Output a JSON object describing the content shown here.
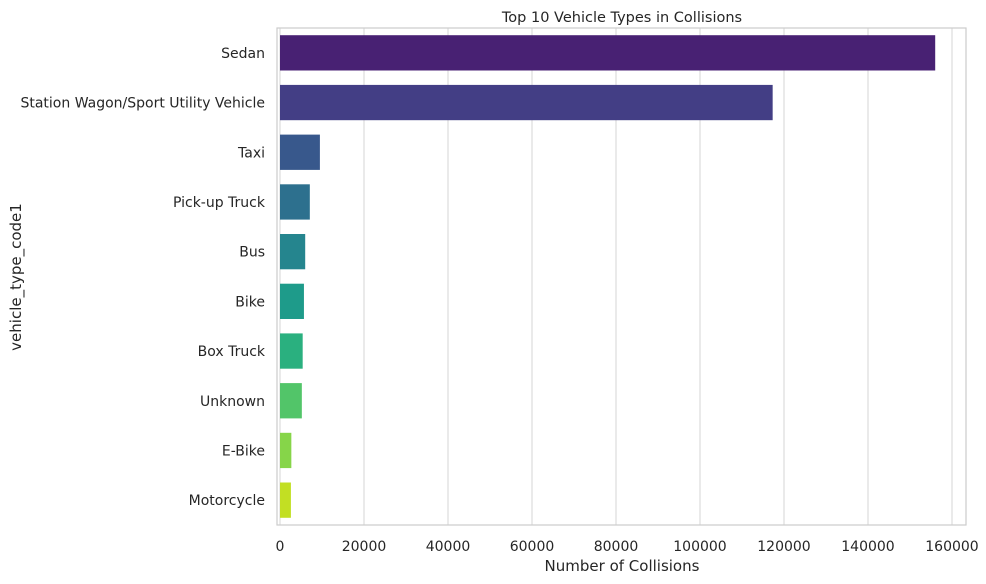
{
  "chart_data": {
    "type": "bar",
    "orientation": "horizontal",
    "title": "Top 10 Vehicle Types in Collisions",
    "xlabel": "Number of Collisions",
    "ylabel": "vehicle_type_code1",
    "categories": [
      "Sedan",
      "Station Wagon/Sport Utility Vehicle",
      "Taxi",
      "Pick-up Truck",
      "Bus",
      "Bike",
      "Box Truck",
      "Unknown",
      "E-Bike",
      "Motorcycle"
    ],
    "values": [
      156000,
      117300,
      9500,
      7100,
      6000,
      5700,
      5400,
      5200,
      2700,
      2600
    ],
    "xlim": [
      0,
      164000
    ],
    "xticks": [
      0,
      20000,
      40000,
      60000,
      80000,
      100000,
      120000,
      140000,
      160000
    ],
    "xtick_labels": [
      "0",
      "20000",
      "40000",
      "60000",
      "80000",
      "100000",
      "120000",
      "140000",
      "160000"
    ],
    "grid": "vertical",
    "colors": [
      "#482173",
      "#433e85",
      "#38588c",
      "#2d708e",
      "#25858e",
      "#1e9b8a",
      "#2ab07f",
      "#52c569",
      "#86d549",
      "#c2df23"
    ]
  }
}
